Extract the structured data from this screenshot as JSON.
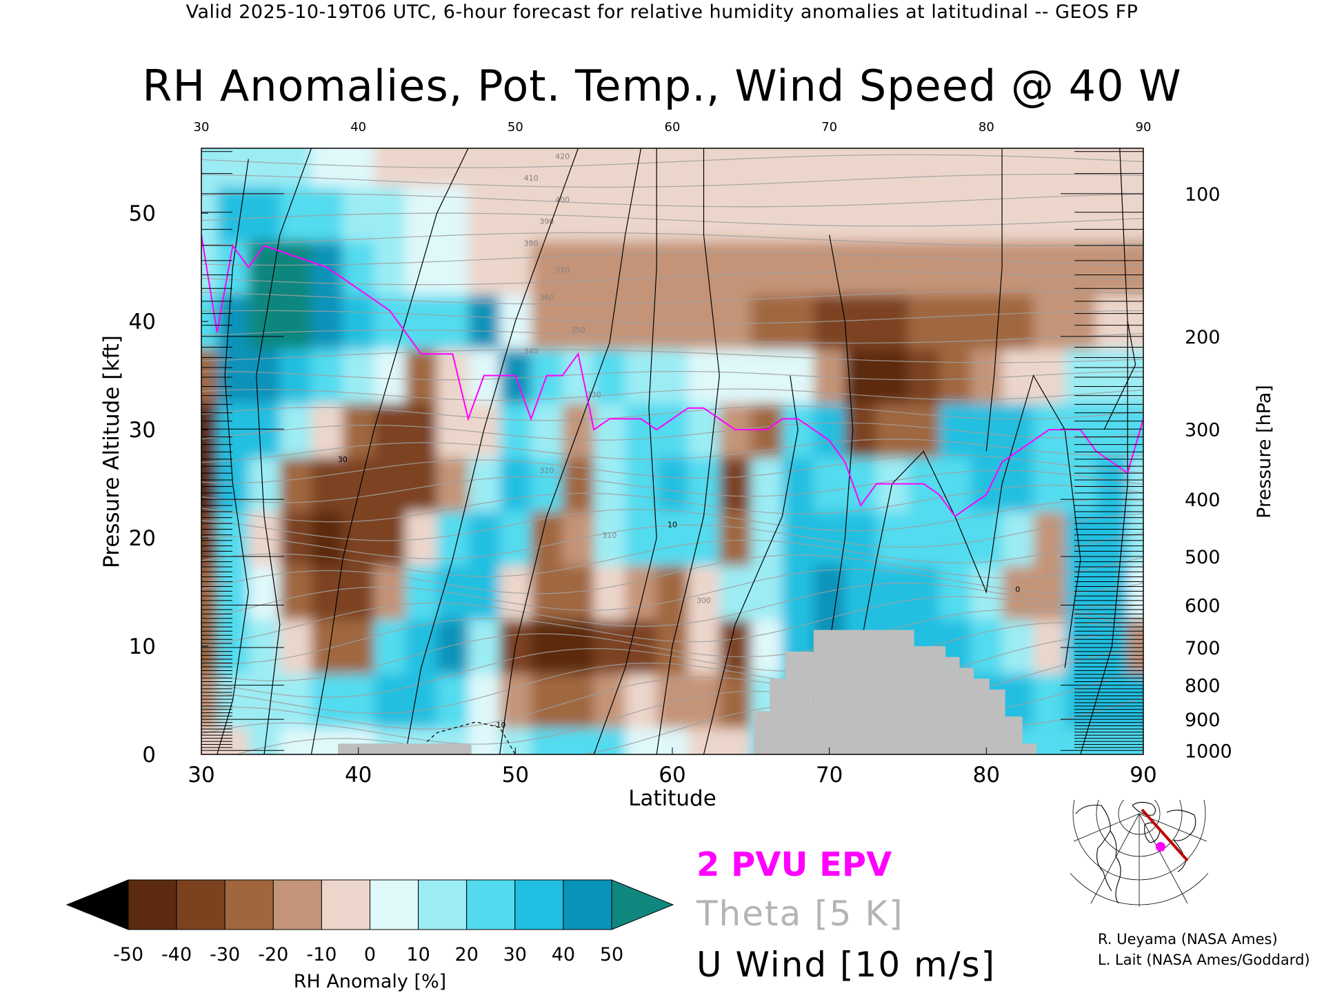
{
  "header": "Valid 2025-10-19T06 UTC, 6-hour forecast for relative humidity anomalies at latitudinal -- GEOS FP",
  "title": "RH Anomalies, Pot. Temp., Wind Speed @ 40 W",
  "chart_data": {
    "type": "heatmap",
    "xlabel": "Latitude",
    "ylabel": "Pressure Altitude [kft]",
    "y2label": "Pressure [hPa]",
    "xlim": [
      30,
      90
    ],
    "ylim": [
      0,
      56
    ],
    "x_ticks": [
      "30",
      "40",
      "50",
      "60",
      "70",
      "80",
      "90"
    ],
    "x_top_ticks": [
      "30",
      "40",
      "50",
      "60",
      "70",
      "80",
      "90"
    ],
    "y_ticks": [
      "0",
      "10",
      "20",
      "30",
      "40",
      "50"
    ],
    "pressure_ticks": [
      {
        "hPa": 1000,
        "label": "1000"
      },
      {
        "hPa": 900,
        "label": "900"
      },
      {
        "hPa": 800,
        "label": "800"
      },
      {
        "hPa": 700,
        "label": "700"
      },
      {
        "hPa": 600,
        "label": "600"
      },
      {
        "hPa": 500,
        "label": "500"
      },
      {
        "hPa": 400,
        "label": "400"
      },
      {
        "hPa": 300,
        "label": "300"
      },
      {
        "hPa": 200,
        "label": "200"
      },
      {
        "hPa": 100,
        "label": "100"
      }
    ],
    "colorbar": {
      "label": "RH Anomaly [%]",
      "ticks": [
        "-50",
        "-40",
        "-30",
        "-20",
        "-10",
        "0",
        "10",
        "20",
        "30",
        "40",
        "50"
      ],
      "min": -50,
      "max": 50
    },
    "rh_anomaly_grid": {
      "lats": [
        30,
        32,
        34,
        36,
        38,
        40,
        42,
        44,
        46,
        48,
        50,
        52,
        54,
        56,
        58,
        60,
        62,
        64,
        66,
        68,
        70,
        72,
        74,
        76,
        78,
        80,
        82,
        84,
        86,
        88,
        90
      ],
      "alts_kft": [
        0,
        5,
        10,
        15,
        20,
        25,
        30,
        35,
        40,
        45,
        50,
        55
      ],
      "values": [
        [
          -5,
          -5,
          10,
          5,
          5,
          5,
          10,
          15,
          15,
          5,
          10,
          20,
          20,
          25,
          5,
          0,
          -5,
          -10,
          20,
          20,
          25,
          25,
          25,
          25,
          25,
          25,
          25,
          20,
          25,
          25,
          25
        ],
        [
          -20,
          10,
          15,
          15,
          20,
          25,
          30,
          30,
          20,
          0,
          -20,
          -30,
          -30,
          -20,
          -10,
          -15,
          -20,
          -25,
          15,
          30,
          30,
          30,
          30,
          30,
          30,
          30,
          35,
          20,
          35,
          30,
          30
        ],
        [
          -25,
          25,
          15,
          -5,
          -30,
          -25,
          25,
          35,
          40,
          10,
          -35,
          -45,
          -45,
          -35,
          -40,
          -25,
          -10,
          -40,
          0,
          35,
          40,
          35,
          35,
          35,
          30,
          25,
          10,
          -10,
          30,
          35,
          -20
        ],
        [
          -30,
          20,
          0,
          -30,
          -40,
          -40,
          -20,
          25,
          35,
          30,
          -10,
          -30,
          -25,
          -10,
          -20,
          -30,
          -10,
          10,
          10,
          30,
          40,
          35,
          30,
          30,
          25,
          15,
          -15,
          -20,
          30,
          35,
          5
        ],
        [
          -40,
          25,
          -10,
          -40,
          -45,
          -40,
          -35,
          -10,
          20,
          30,
          25,
          -30,
          -20,
          10,
          20,
          25,
          20,
          -30,
          15,
          35,
          35,
          30,
          25,
          20,
          20,
          20,
          10,
          -15,
          30,
          30,
          10
        ],
        [
          -45,
          30,
          15,
          -30,
          -40,
          -40,
          -40,
          -35,
          -20,
          15,
          30,
          20,
          -30,
          15,
          25,
          30,
          25,
          -35,
          15,
          30,
          25,
          20,
          15,
          20,
          25,
          30,
          35,
          25,
          25,
          30,
          15
        ],
        [
          -50,
          35,
          30,
          10,
          -10,
          -25,
          -35,
          -35,
          -10,
          -10,
          25,
          10,
          -20,
          15,
          20,
          20,
          15,
          -20,
          -25,
          25,
          30,
          -35,
          -30,
          -25,
          30,
          35,
          30,
          25,
          20,
          25,
          20
        ],
        [
          -25,
          45,
          40,
          30,
          20,
          10,
          0,
          -30,
          -5,
          5,
          40,
          25,
          10,
          20,
          15,
          15,
          5,
          5,
          0,
          5,
          -20,
          -45,
          -50,
          -40,
          -25,
          -15,
          -10,
          -10,
          10,
          15,
          15
        ],
        [
          20,
          40,
          55,
          60,
          45,
          30,
          25,
          20,
          25,
          40,
          5,
          -15,
          -20,
          -20,
          -20,
          -20,
          -20,
          -20,
          -25,
          -30,
          -35,
          -40,
          -35,
          -30,
          -30,
          -30,
          -25,
          -20,
          -15,
          -10,
          -10
        ],
        [
          15,
          20,
          60,
          60,
          45,
          25,
          15,
          5,
          0,
          -5,
          -10,
          -15,
          -15,
          -15,
          -15,
          -15,
          -15,
          -15,
          -15,
          -15,
          -15,
          -15,
          -15,
          -15,
          -15,
          -15,
          -15,
          -15,
          -15,
          -15,
          -15
        ],
        [
          15,
          30,
          35,
          20,
          20,
          15,
          10,
          5,
          0,
          -5,
          -10,
          -10,
          -10,
          -10,
          -10,
          -10,
          -10,
          -10,
          -10,
          -10,
          -10,
          -10,
          -10,
          -10,
          -10,
          -10,
          -10,
          -10,
          -10,
          -10,
          -10
        ],
        [
          10,
          15,
          15,
          10,
          5,
          0,
          -5,
          -5,
          -10,
          -10,
          -10,
          -10,
          -10,
          -10,
          -10,
          -10,
          -10,
          -10,
          -10,
          -10,
          -10,
          -10,
          -10,
          -10,
          -10,
          -10,
          -10,
          -10,
          -10,
          -10,
          -10
        ]
      ]
    },
    "terrain_mask": [
      {
        "lat_from": 38.7,
        "lat_to": 47.2,
        "top_kft": 1.0
      },
      {
        "lat_from": 65.2,
        "lat_to": 66.2,
        "top_kft": 4.0
      },
      {
        "lat_from": 66.2,
        "lat_to": 67.2,
        "top_kft": 7.0
      },
      {
        "lat_from": 67.2,
        "lat_to": 69.0,
        "top_kft": 9.5
      },
      {
        "lat_from": 69.0,
        "lat_to": 75.4,
        "top_kft": 11.5
      },
      {
        "lat_from": 75.4,
        "lat_to": 77.4,
        "top_kft": 10.0
      },
      {
        "lat_from": 77.4,
        "lat_to": 78.3,
        "top_kft": 9.0
      },
      {
        "lat_from": 78.3,
        "lat_to": 79.2,
        "top_kft": 8.0
      },
      {
        "lat_from": 79.2,
        "lat_to": 80.2,
        "top_kft": 7.0
      },
      {
        "lat_from": 80.2,
        "lat_to": 81.2,
        "top_kft": 6.0
      },
      {
        "lat_from": 81.2,
        "lat_to": 82.3,
        "top_kft": 3.5
      },
      {
        "lat_from": 82.3,
        "lat_to": 83.2,
        "top_kft": 1.0
      }
    ],
    "epv_2pvu_line": {
      "lats": [
        30,
        31,
        32,
        33,
        34,
        36,
        38,
        40,
        42,
        44,
        46,
        47,
        48,
        50,
        51,
        52,
        53,
        54,
        55,
        56,
        57,
        58,
        59,
        60,
        61,
        62,
        63,
        64,
        65,
        66,
        67,
        68,
        69,
        70,
        71,
        72,
        73,
        74,
        75,
        76,
        77,
        78,
        79,
        80,
        81,
        82,
        83,
        84,
        85,
        86,
        87,
        88,
        89,
        90
      ],
      "alts_kft": [
        48,
        39,
        47,
        45,
        47,
        46,
        45,
        43,
        41,
        37,
        37,
        31,
        35,
        35,
        31,
        35,
        35,
        37,
        30,
        31,
        31,
        31,
        30,
        31,
        32,
        32,
        31,
        30,
        30,
        30,
        31,
        31,
        30,
        29,
        27,
        23,
        25,
        25,
        25,
        25,
        24,
        22,
        23,
        24,
        27,
        28,
        29,
        30,
        30,
        30,
        28,
        27,
        26,
        31
      ]
    },
    "theta_contours": {
      "labels": [
        "300",
        "310",
        "320",
        "330",
        "340",
        "350",
        "360",
        "370",
        "380",
        "390",
        "400",
        "410",
        "420"
      ],
      "interval_K": 5
    },
    "u_wind_contours": {
      "labels": [
        "-10",
        "0",
        "10",
        "30"
      ],
      "interval_ms": 10
    },
    "legend": {
      "epv": "2 PVU EPV",
      "theta": "Theta [5 K]",
      "u_wind": "U Wind [10 m/s]"
    }
  },
  "credits": {
    "line1": "R. Ueyama (NASA Ames)",
    "line2": "L. Lait (NASA Ames/Goddard)"
  },
  "colors": {
    "epv": "#ff00ff",
    "theta": "#a0a0a0",
    "terrain": "#bebebe",
    "colormap": [
      "#000000",
      "#5c2a0e",
      "#7c4220",
      "#a0673f",
      "#c49478",
      "#ecd6cb",
      "#dff8fa",
      "#9cecf4",
      "#52dbef",
      "#20bfe1",
      "#0a93b9",
      "#10877e"
    ]
  }
}
